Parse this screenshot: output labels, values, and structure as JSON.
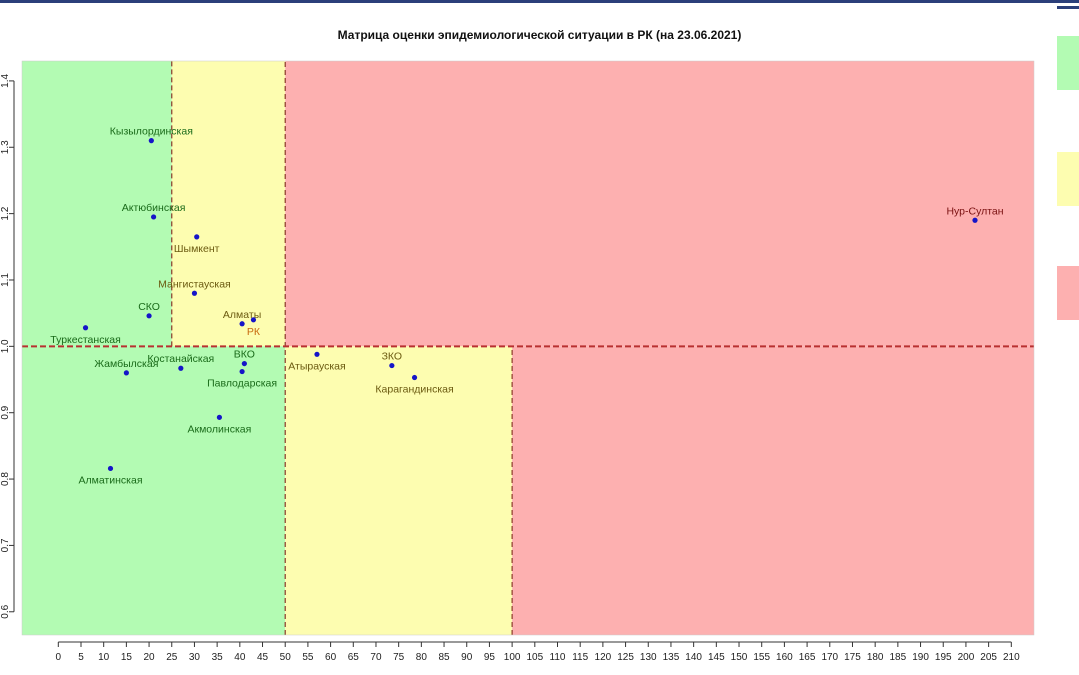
{
  "chart_data": {
    "type": "scatter",
    "title": "Матрица оценки эпидемиологической ситуации в РК (на 23.06.2021)",
    "xlabel": "",
    "ylabel": "",
    "xlim": [
      -8,
      215
    ],
    "ylim": [
      0.565,
      1.43
    ],
    "x_ticks": [
      0,
      5,
      10,
      15,
      20,
      25,
      30,
      35,
      40,
      45,
      50,
      55,
      60,
      65,
      70,
      75,
      80,
      85,
      90,
      95,
      100,
      105,
      110,
      115,
      120,
      125,
      130,
      135,
      140,
      145,
      150,
      155,
      160,
      165,
      170,
      175,
      180,
      185,
      190,
      195,
      200,
      205,
      210
    ],
    "y_ticks": [
      0.6,
      0.7,
      0.8,
      0.9,
      1.0,
      1.1,
      1.2,
      1.3,
      1.4
    ],
    "grid": false,
    "zones": [
      {
        "x0": -8,
        "x1": 25,
        "y0": 1.0,
        "y1": 1.43,
        "color": "#b3fbb3"
      },
      {
        "x0": 25,
        "x1": 50,
        "y0": 1.0,
        "y1": 1.43,
        "color": "#fdfdb0"
      },
      {
        "x0": 50,
        "x1": 215,
        "y0": 1.0,
        "y1": 1.43,
        "color": "#fdb0b0"
      },
      {
        "x0": -8,
        "x1": 50,
        "y0": 0.565,
        "y1": 1.0,
        "color": "#b3fbb3"
      },
      {
        "x0": 50,
        "x1": 100,
        "y0": 0.565,
        "y1": 1.0,
        "color": "#fdfdb0"
      },
      {
        "x0": 100,
        "x1": 215,
        "y0": 0.565,
        "y1": 1.0,
        "color": "#fdb0b0"
      }
    ],
    "threshold_lines": [
      {
        "axis": "x",
        "value": 25,
        "y0": 1.0,
        "y1": 1.43
      },
      {
        "axis": "x",
        "value": 50,
        "y0": 0.565,
        "y1": 1.43
      },
      {
        "axis": "x",
        "value": 100,
        "y0": 0.565,
        "y1": 1.0
      },
      {
        "axis": "y",
        "value": 1.0,
        "x0": -8,
        "x1": 215
      }
    ],
    "points": [
      {
        "label": "Кызылординская",
        "x": 20.5,
        "y": 1.31,
        "color": "#1a6b1a",
        "anchor": "above"
      },
      {
        "label": "Актюбинская",
        "x": 21,
        "y": 1.195,
        "color": "#1a6b1a",
        "anchor": "above"
      },
      {
        "label": "Шымкент",
        "x": 30.5,
        "y": 1.165,
        "color": "#6b5a10",
        "anchor": "below"
      },
      {
        "label": "Мангистауская",
        "x": 30,
        "y": 1.08,
        "color": "#6b5a10",
        "anchor": "above"
      },
      {
        "label": "СКО",
        "x": 20,
        "y": 1.046,
        "color": "#1a6b1a",
        "anchor": "above"
      },
      {
        "label": "Туркестанская",
        "x": 6,
        "y": 1.028,
        "color": "#1a6b1a",
        "anchor": "below"
      },
      {
        "label": "Алматы",
        "x": 40.5,
        "y": 1.034,
        "color": "#6b5a10",
        "anchor": "above"
      },
      {
        "label": "РК",
        "x": 43,
        "y": 1.04,
        "color": "#c86a10",
        "anchor": "below"
      },
      {
        "label": "ВКО",
        "x": 41,
        "y": 0.974,
        "color": "#1a6b1a",
        "anchor": "above"
      },
      {
        "label": "Павлодарская",
        "x": 40.5,
        "y": 0.962,
        "color": "#1a6b1a",
        "anchor": "below"
      },
      {
        "label": "Костанайская",
        "x": 27,
        "y": 0.967,
        "color": "#1a6b1a",
        "anchor": "above"
      },
      {
        "label": "Жамбылская",
        "x": 15,
        "y": 0.96,
        "color": "#1a6b1a",
        "anchor": "above"
      },
      {
        "label": "Акмолинская",
        "x": 35.5,
        "y": 0.893,
        "color": "#1a6b1a",
        "anchor": "below"
      },
      {
        "label": "Алматинская",
        "x": 11.5,
        "y": 0.816,
        "color": "#1a6b1a",
        "anchor": "below"
      },
      {
        "label": "Атырауская",
        "x": 57,
        "y": 0.988,
        "color": "#6b5a10",
        "anchor": "below"
      },
      {
        "label": "ЗКО",
        "x": 73.5,
        "y": 0.971,
        "color": "#6b5a10",
        "anchor": "above"
      },
      {
        "label": "Карагандинская",
        "x": 78.5,
        "y": 0.953,
        "color": "#6b5a10",
        "anchor": "below"
      },
      {
        "label": "Нур-Султан",
        "x": 202,
        "y": 1.19,
        "color": "#7a1010",
        "anchor": "above"
      }
    ]
  },
  "legend": {
    "colors": [
      "#b3fbb3",
      "#fdfdb0",
      "#fdb0b0"
    ]
  }
}
